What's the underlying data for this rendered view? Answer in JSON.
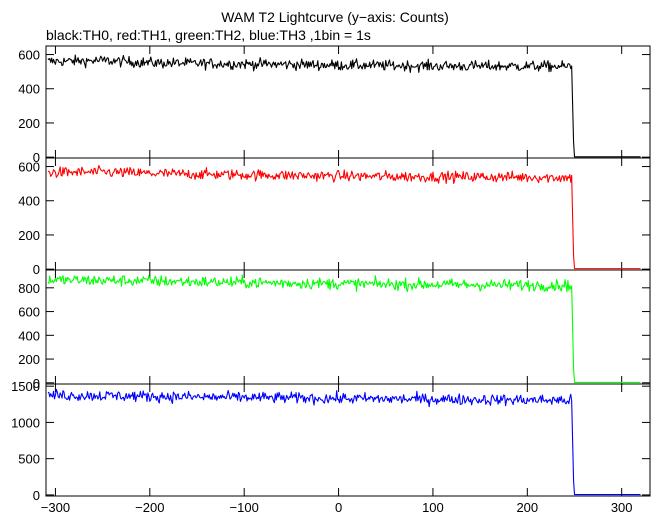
{
  "chart_data": {
    "type": "line",
    "title": "WAM T2 Lightcurve (y−axis: Counts)",
    "subtitle": "black:TH0, red:TH1, green:TH2, blue:TH3 ,1bin = 1s",
    "xlim": [
      -310,
      330
    ],
    "x_ticks": [
      -300,
      -200,
      -100,
      0,
      100,
      200,
      300
    ],
    "x_tick_labels": [
      "−300",
      "−200",
      "−100",
      "0",
      "100",
      "200",
      "300"
    ],
    "grid": false,
    "panels": [
      {
        "name": "TH0",
        "color": "#000000",
        "ylim": [
          -5,
          650
        ],
        "y_ticks": [
          0,
          200,
          400,
          600
        ],
        "y_tick_labels": [
          "0",
          "200",
          "400",
          "600"
        ],
        "series": [
          {
            "x": [
              -300,
              -250,
              -200,
              -150,
              -100,
              -50,
              0,
              50,
              100,
              150,
              200,
              247,
              249,
              250,
              320
            ],
            "y": [
              560,
              565,
              552,
              548,
              545,
              542,
              538,
              536,
              533,
              532,
              532,
              530,
              90,
              2,
              2
            ]
          }
        ]
      },
      {
        "name": "TH1",
        "color": "#ff0000",
        "ylim": [
          -5,
          650
        ],
        "y_ticks": [
          0,
          200,
          400,
          600
        ],
        "y_tick_labels": [
          "0",
          "200",
          "400",
          "600"
        ],
        "series": [
          {
            "x": [
              -300,
              -250,
              -200,
              -150,
              -100,
              -50,
              0,
              50,
              100,
              150,
              200,
              247,
              249,
              250,
              320
            ],
            "y": [
              565,
              568,
              560,
              555,
              552,
              548,
              545,
              542,
              540,
              540,
              538,
              535,
              80,
              3,
              3
            ]
          }
        ]
      },
      {
        "name": "TH2",
        "color": "#00ff00",
        "ylim": [
          -10,
          950
        ],
        "y_ticks": [
          0,
          200,
          400,
          600,
          800
        ],
        "y_tick_labels": [
          "0",
          "200",
          "400",
          "600",
          "800"
        ],
        "series": [
          {
            "x": [
              -300,
              -250,
              -200,
              -150,
              -100,
              -50,
              0,
              50,
              100,
              150,
              200,
              247,
              249,
              250,
              320
            ],
            "y": [
              865,
              862,
              858,
              850,
              845,
              840,
              835,
              830,
              828,
              825,
              822,
              820,
              120,
              3,
              3
            ]
          }
        ]
      },
      {
        "name": "TH3",
        "color": "#0000ff",
        "ylim": [
          -15,
          1530
        ],
        "y_ticks": [
          0,
          500,
          1000,
          1500
        ],
        "y_tick_labels": [
          "0",
          "500",
          "1000",
          "1500"
        ],
        "series": [
          {
            "x": [
              -300,
              -250,
              -200,
              -150,
              -100,
              -50,
              0,
              50,
              100,
              150,
              200,
              247,
              249,
              250,
              320
            ],
            "y": [
              1375,
              1368,
              1360,
              1350,
              1345,
              1338,
              1330,
              1325,
              1320,
              1315,
              1310,
              1305,
              200,
              5,
              5
            ]
          }
        ]
      }
    ]
  }
}
